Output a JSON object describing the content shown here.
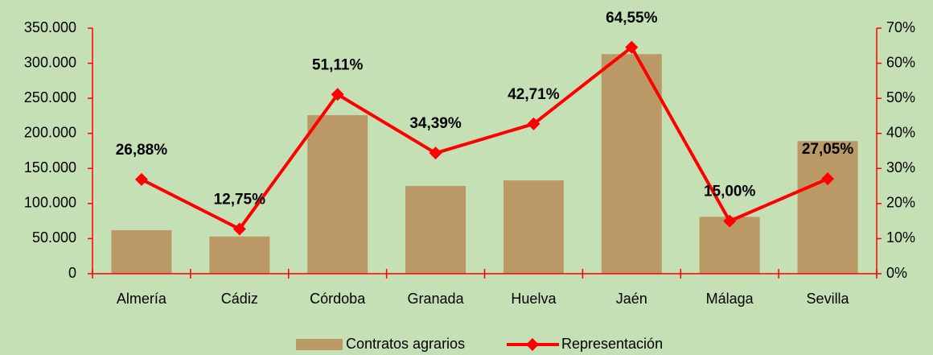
{
  "chart_data": {
    "type": "bar-line",
    "categories": [
      "Almería",
      "Cádiz",
      "Córdoba",
      "Granada",
      "Huelva",
      "Jaén",
      "Málaga",
      "Sevilla"
    ],
    "series": [
      {
        "name": "Contratos agrarios",
        "color": "#bb9966",
        "type": "bar",
        "values": [
          62000,
          53000,
          226000,
          125000,
          133000,
          313000,
          81000,
          189000
        ]
      },
      {
        "name": "Representación",
        "color": "#ff0000",
        "type": "line",
        "axis": "y2",
        "values": [
          26.88,
          12.75,
          51.11,
          34.39,
          42.71,
          64.55,
          15.0,
          27.05
        ],
        "value_labels": [
          "26,88%",
          "12,75%",
          "51,11%",
          "34,39%",
          "42,71%",
          "64,55%",
          "15,00%",
          "27,05%"
        ]
      }
    ],
    "ylim": [
      0,
      350000
    ],
    "yticks": [
      0,
      {
        "value": 50000,
        "label": "50.000"
      },
      {
        "value": 100000,
        "label": "100.000"
      },
      {
        "value": 150000,
        "label": "150.000"
      },
      {
        "value": 200000,
        "label": "200.000"
      },
      {
        "value": 250000,
        "label": "250.000"
      },
      {
        "value": 300000,
        "label": "300.000"
      },
      {
        "value": 350000,
        "label": "350.000"
      }
    ],
    "y2lim": [
      0,
      70
    ],
    "y2ticks": [
      {
        "value": 0,
        "label": "0%"
      },
      {
        "value": 10,
        "label": "10%"
      },
      {
        "value": 20,
        "label": "20%"
      },
      {
        "value": 30,
        "label": "30%"
      },
      {
        "value": 40,
        "label": "40%"
      },
      {
        "value": 50,
        "label": "50%"
      },
      {
        "value": 60,
        "label": "60%"
      },
      {
        "value": 70,
        "label": "70%"
      }
    ],
    "legend": "bottom"
  }
}
